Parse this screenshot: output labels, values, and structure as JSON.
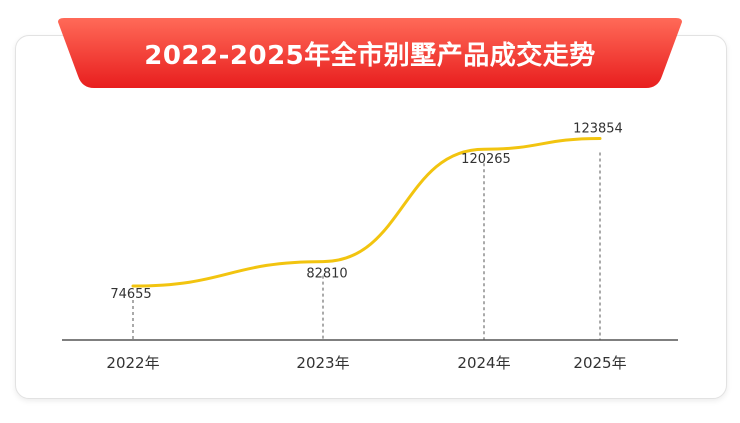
{
  "chart_data": {
    "type": "line",
    "title": "2022-2025年全市别墅产品成交走势",
    "categories": [
      "2022年",
      "2023年",
      "2024年",
      "2025年"
    ],
    "values": [
      74655,
      82810,
      120265,
      123854
    ],
    "data_labels": [
      "74655",
      "82810",
      "120265",
      "123854"
    ],
    "series": [
      {
        "values": [
          74655,
          82810,
          120265,
          123854
        ]
      }
    ],
    "ylim": [
      60000,
      130000
    ],
    "grid": false,
    "legend": "none"
  },
  "colors": {
    "line": "#f2c40f",
    "banner_top": "#ff5a4a",
    "banner_bottom": "#e81e1e",
    "axis": "#333333",
    "text": "#333333"
  }
}
